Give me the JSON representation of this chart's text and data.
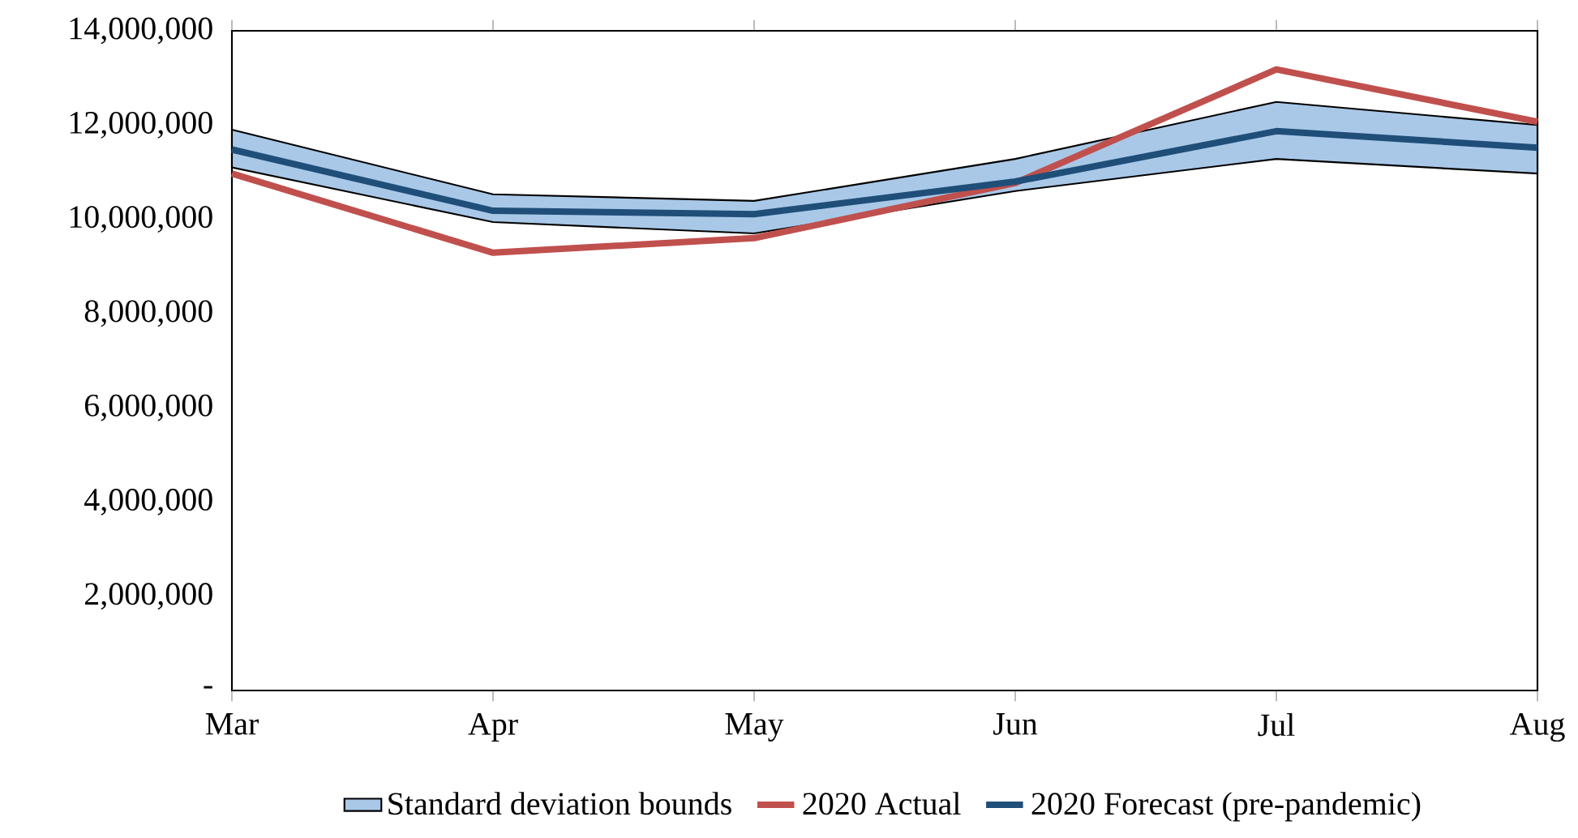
{
  "chart_data": {
    "type": "line",
    "categories": [
      "Mar",
      "Apr",
      "May",
      "Jun",
      "Jul",
      "Aug"
    ],
    "series": [
      {
        "name": "Standard deviation bounds",
        "type": "area",
        "color": "#a9c8e8",
        "values": [
          null,
          null,
          null,
          null,
          null,
          null
        ],
        "lower": [
          11100000,
          9940000,
          9700000,
          10600000,
          11280000,
          10970000
        ],
        "upper": [
          11900000,
          10530000,
          10390000,
          11280000,
          12490000,
          12000000
        ]
      },
      {
        "name": "2020 Actual",
        "color": "#c0504d",
        "values": [
          10970000,
          9290000,
          9600000,
          10770000,
          13180000,
          12070000
        ]
      },
      {
        "name": "2020 Forecast (pre-pandemic)",
        "color": "#1f4e79",
        "values": [
          11480000,
          10180000,
          10110000,
          10800000,
          11870000,
          11520000
        ]
      }
    ],
    "ylim": [
      0,
      14000000
    ],
    "yticks": [
      {
        "value": 0,
        "label": "-"
      },
      {
        "value": 2000000,
        "label": "2,000,000"
      },
      {
        "value": 4000000,
        "label": "4,000,000"
      },
      {
        "value": 6000000,
        "label": "6,000,000"
      },
      {
        "value": 8000000,
        "label": "8,000,000"
      },
      {
        "value": 10000000,
        "label": "10,000,000"
      },
      {
        "value": 12000000,
        "label": "12,000,000"
      },
      {
        "value": 14000000,
        "label": "14,000,000"
      }
    ],
    "grid": false,
    "legend": "bottom",
    "marker": "none",
    "line_style": "solid"
  }
}
